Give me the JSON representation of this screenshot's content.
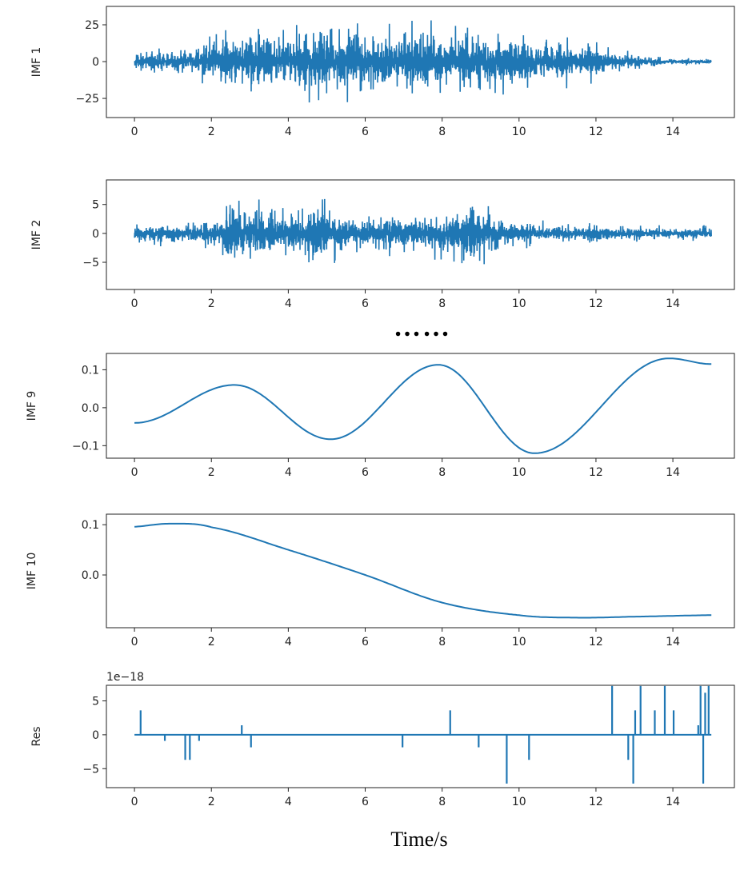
{
  "chart_data": {
    "type": "line",
    "xlabel": "Time/s",
    "separator": "……",
    "line_color": "#1f77b4",
    "xlim": [
      -0.73,
      15.6
    ],
    "xticks": [
      0,
      2,
      4,
      6,
      8,
      10,
      12,
      14
    ],
    "panels": [
      {
        "ylabel": "IMF 1",
        "kind": "oscillation",
        "ylim": [
          -38,
          37.5
        ],
        "yticks": [
          25,
          0,
          -25
        ],
        "ytick_labels": [
          "25",
          "0",
          "−25"
        ],
        "amplitude_envelope": {
          "x": [
            0,
            1,
            1.5,
            2,
            3,
            4,
            4.7,
            5,
            6,
            7,
            7.3,
            8,
            9,
            10,
            11,
            12,
            12.5,
            13,
            14,
            15
          ],
          "y": [
            10,
            10,
            12,
            20,
            25,
            27,
            33,
            27,
            28,
            30,
            33,
            27,
            25,
            25,
            20,
            15,
            10,
            6,
            3,
            2
          ]
        }
      },
      {
        "ylabel": "IMF 2",
        "kind": "oscillation",
        "ylim": [
          -9.7,
          9.25
        ],
        "yticks": [
          5,
          0,
          -5
        ],
        "ytick_labels": [
          "5",
          "0",
          "−5"
        ],
        "amplitude_envelope": {
          "x": [
            0,
            1,
            2,
            2.2,
            3,
            4,
            4.85,
            5.5,
            6,
            7,
            8,
            8.9,
            9.5,
            10,
            11,
            13,
            14,
            15
          ],
          "y": [
            2,
            2.5,
            3,
            5,
            6.5,
            4.5,
            8.5,
            4,
            4.5,
            4,
            5,
            8.5,
            3.5,
            3,
            2,
            1.5,
            1.5,
            1.5
          ]
        }
      },
      {
        "ylabel": "IMF 9",
        "kind": "smooth",
        "ylim": [
          -0.133,
          0.143
        ],
        "yticks": [
          0.1,
          0.0,
          -0.1
        ],
        "ytick_labels": [
          "0.1",
          "0.0",
          "−0.1"
        ],
        "x": [
          0,
          2.6,
          5.1,
          7.9,
          10.4,
          13.9,
          15
        ],
        "y": [
          -0.04,
          0.06,
          -0.083,
          0.113,
          -0.12,
          0.13,
          0.115
        ]
      },
      {
        "ylabel": "IMF 10",
        "kind": "smooth",
        "ylim": [
          -0.105,
          0.121
        ],
        "yticks": [
          0.1,
          0.0
        ],
        "ytick_labels": [
          "0.1",
          "0.0"
        ],
        "x": [
          0,
          0.9,
          2,
          4,
          6,
          8,
          10,
          11.5,
          13,
          15
        ],
        "y": [
          0.096,
          0.102,
          0.095,
          0.05,
          0.0,
          -0.055,
          -0.08,
          -0.085,
          -0.083,
          -0.08
        ]
      },
      {
        "ylabel": "Res",
        "kind": "spikes",
        "offset_text": "1e−18",
        "ylim": [
          -7.8,
          7.3
        ],
        "yticks": [
          5,
          0,
          -5
        ],
        "ytick_labels": [
          "5",
          "0",
          "−5"
        ],
        "spikes_x": [
          0.16,
          0.79,
          1.32,
          1.44,
          1.68,
          2.79,
          3.03,
          6.97,
          8.21,
          8.95,
          9.68,
          10.26,
          12.42,
          12.84,
          12.97,
          13.02,
          13.16,
          13.53,
          13.79,
          14.02,
          14.66,
          14.72,
          14.79,
          14.84,
          14.93
        ],
        "spikes_y": [
          3.6,
          -0.9,
          -3.7,
          -3.7,
          -0.9,
          1.4,
          -1.85,
          -1.85,
          3.6,
          -1.85,
          -7.2,
          -3.7,
          7.2,
          -3.7,
          -7.2,
          3.6,
          7.2,
          3.6,
          7.2,
          3.6,
          1.4,
          7.2,
          -7.2,
          6.2,
          7.2
        ]
      }
    ]
  }
}
